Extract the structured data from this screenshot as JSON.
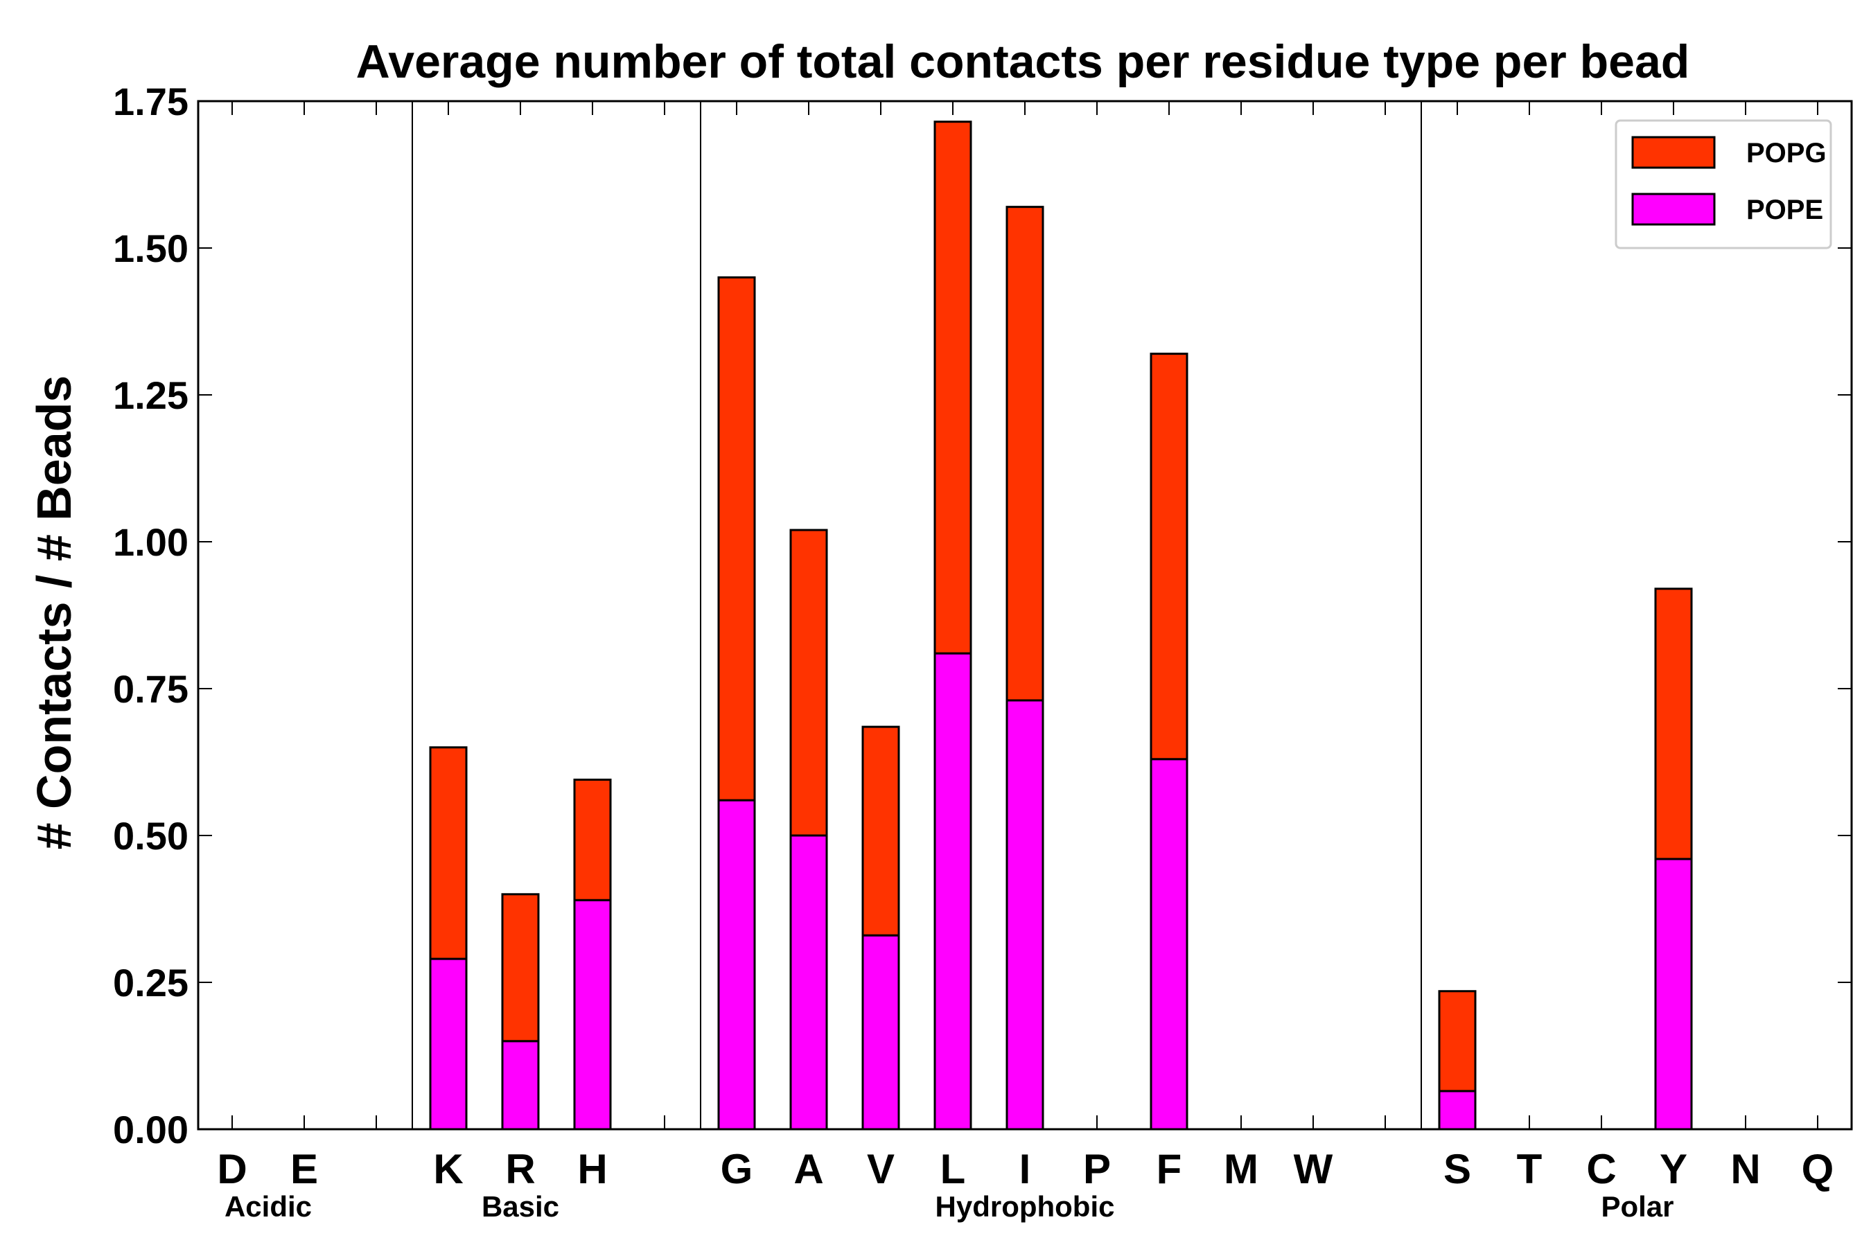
{
  "chart_data": {
    "type": "bar",
    "stacked": true,
    "title": "Average number of total contacts per residue type per bead",
    "xlabel": "",
    "ylabel": "# Contacts / # Beads",
    "ylim": [
      0,
      1.75
    ],
    "yticks": [
      "0.00",
      "0.25",
      "0.50",
      "0.75",
      "1.00",
      "1.25",
      "1.50",
      "1.75"
    ],
    "grid": false,
    "legend_position": "top-right",
    "categories": [
      "D",
      "E",
      "",
      "K",
      "R",
      "H",
      "",
      "G",
      "A",
      "V",
      "L",
      "I",
      "P",
      "F",
      "M",
      "W",
      "",
      "S",
      "T",
      "C",
      "Y",
      "N",
      "Q"
    ],
    "series": [
      {
        "name": "POPE",
        "color": "#ff00ff",
        "values": [
          0,
          0,
          0,
          0.29,
          0.15,
          0.39,
          0,
          0.56,
          0.5,
          0.33,
          0.81,
          0.73,
          0,
          0.63,
          0,
          0,
          0,
          0.065,
          0,
          0,
          0.46,
          0,
          0
        ]
      },
      {
        "name": "POPG",
        "color": "#ff3300",
        "values": [
          0,
          0,
          0,
          0.36,
          0.25,
          0.205,
          0,
          0.89,
          0.52,
          0.355,
          0.905,
          0.84,
          0,
          0.69,
          0,
          0,
          0,
          0.17,
          0,
          0,
          0.46,
          0,
          0
        ]
      }
    ],
    "groups": [
      {
        "label": "Acidic",
        "start": 0,
        "end": 1
      },
      {
        "label": "Basic",
        "start": 3,
        "end": 5
      },
      {
        "label": "Hydrophobic",
        "start": 7,
        "end": 15
      },
      {
        "label": "Polar",
        "start": 17,
        "end": 22
      }
    ],
    "separators_after": [
      2,
      6,
      16
    ],
    "legend_order": [
      "POPG",
      "POPE"
    ]
  }
}
